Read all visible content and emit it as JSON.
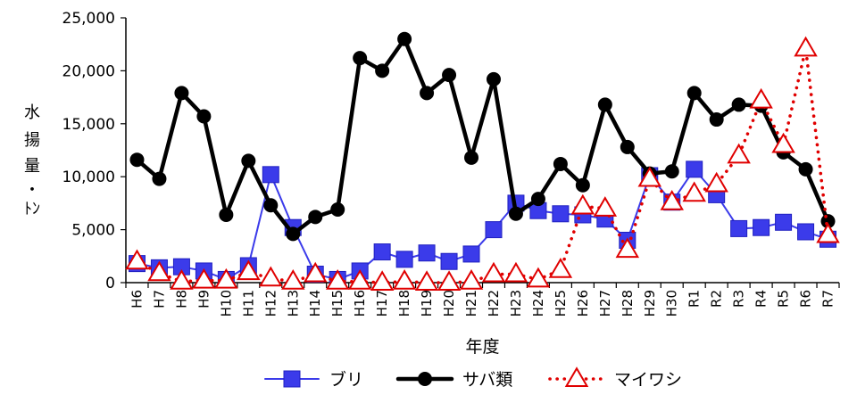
{
  "chart_data": {
    "type": "line",
    "title": "",
    "xlabel": "年度",
    "ylabel": [
      "水",
      "揚",
      "量",
      "・",
      "ﾄﾝ"
    ],
    "ylim": [
      0,
      25000
    ],
    "yticks": [
      0,
      5000,
      10000,
      15000,
      20000,
      25000
    ],
    "ytick_labels": [
      "0",
      "5,000",
      "10,000",
      "15,000",
      "20,000",
      "25,000"
    ],
    "grid": false,
    "legend_position": "bottom",
    "categories": [
      "H6",
      "H7",
      "H8",
      "H9",
      "H10",
      "H11",
      "H12",
      "H13",
      "H14",
      "H15",
      "H16",
      "H17",
      "H18",
      "H19",
      "H20",
      "H21",
      "H22",
      "H23",
      "H24",
      "H25",
      "H26",
      "H27",
      "H28",
      "H29",
      "H30",
      "R1",
      "R2",
      "R3",
      "R4",
      "R5",
      "R6",
      "R7"
    ],
    "series": [
      {
        "name": "ブリ",
        "color": "#3B3BEA",
        "line_style": "solid",
        "marker": "square",
        "values": [
          1800,
          1400,
          1500,
          1100,
          300,
          1600,
          10200,
          5200,
          800,
          300,
          1100,
          2900,
          2200,
          2800,
          2000,
          2700,
          5000,
          7500,
          6800,
          6500,
          6400,
          6000,
          4000,
          10100,
          7600,
          10700,
          8300,
          5100,
          5200,
          5700,
          4800,
          4100
        ]
      },
      {
        "name": "サバ類",
        "color": "#000000",
        "line_style": "solid",
        "marker": "circle",
        "values": [
          11600,
          9800,
          17900,
          15700,
          6400,
          11500,
          7300,
          4600,
          6200,
          6900,
          21200,
          20000,
          23000,
          17900,
          19600,
          11800,
          19200,
          6500,
          7900,
          11200,
          9200,
          16800,
          12800,
          10300,
          10500,
          17900,
          15400,
          16800,
          16700,
          12300,
          10700,
          5800
        ]
      },
      {
        "name": "マイワシ",
        "color": "#E00000",
        "line_style": "dotted",
        "marker": "triangle",
        "values": [
          2000,
          900,
          100,
          200,
          200,
          1000,
          400,
          100,
          800,
          100,
          100,
          0,
          100,
          0,
          0,
          100,
          800,
          800,
          300,
          1200,
          7200,
          7000,
          3100,
          9800,
          7600,
          8400,
          9300,
          12000,
          17200,
          13000,
          22100,
          4500
        ]
      }
    ]
  }
}
